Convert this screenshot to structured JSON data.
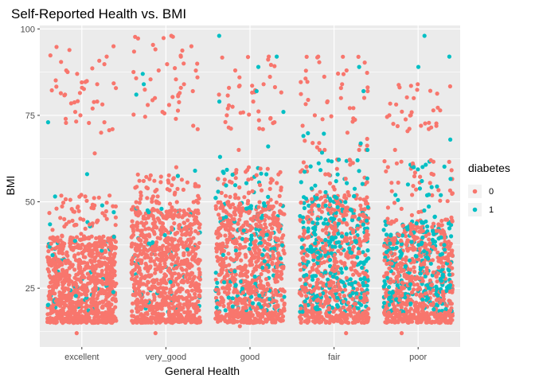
{
  "chart_data": {
    "type": "scatter",
    "title": "Self-Reported Health vs. BMI",
    "xlabel": "General Health",
    "ylabel": "BMI",
    "categories": [
      "excellent",
      "very_good",
      "good",
      "fair",
      "poor"
    ],
    "ylim": [
      8,
      101
    ],
    "yticks": [
      25,
      50,
      75,
      100
    ],
    "jitter": "horizontal jitter within each category",
    "grid": true,
    "legend": {
      "title": "diabetes",
      "placement": "right",
      "entries": [
        {
          "label": "0",
          "color": "#F8766D"
        },
        {
          "label": "1",
          "color": "#00BFC4"
        }
      ]
    },
    "series": [
      {
        "name": "0",
        "color": "#F8766D",
        "bands": [
          {
            "category": "excellent",
            "dense_range": [
              15,
              40
            ],
            "sparse_range": [
              40,
              52
            ],
            "top_range": [
              70,
              95
            ]
          },
          {
            "category": "very_good",
            "dense_range": [
              15,
              48
            ],
            "sparse_range": [
              48,
              58
            ],
            "top_range": [
              70,
              98
            ]
          },
          {
            "category": "good",
            "dense_range": [
              15,
              50
            ],
            "sparse_range": [
              50,
              60
            ],
            "top_range": [
              70,
              92
            ]
          },
          {
            "category": "fair",
            "dense_range": [
              15,
              52
            ],
            "sparse_range": [
              52,
              70
            ],
            "top_range": [
              72,
              92
            ]
          },
          {
            "category": "poor",
            "dense_range": [
              15,
              45
            ],
            "sparse_range": [
              45,
              62
            ],
            "top_range": [
              70,
              84
            ]
          }
        ],
        "points": [
          {
            "x": "excellent",
            "y": 95
          },
          {
            "x": "excellent",
            "y": 92
          },
          {
            "x": "excellent",
            "y": 88
          },
          {
            "x": "excellent",
            "y": 87
          },
          {
            "x": "excellent",
            "y": 84
          },
          {
            "x": "excellent",
            "y": 83
          },
          {
            "x": "excellent",
            "y": 81
          },
          {
            "x": "excellent",
            "y": 79
          },
          {
            "x": "excellent",
            "y": 77
          },
          {
            "x": "excellent",
            "y": 75
          },
          {
            "x": "excellent",
            "y": 74
          },
          {
            "x": "excellent",
            "y": 73
          },
          {
            "x": "excellent",
            "y": 71
          },
          {
            "x": "excellent",
            "y": 70
          },
          {
            "x": "excellent",
            "y": 64
          },
          {
            "x": "very_good",
            "y": 98
          },
          {
            "x": "very_good",
            "y": 95
          },
          {
            "x": "very_good",
            "y": 92
          },
          {
            "x": "very_good",
            "y": 90
          },
          {
            "x": "very_good",
            "y": 88
          },
          {
            "x": "very_good",
            "y": 86
          },
          {
            "x": "very_good",
            "y": 84
          },
          {
            "x": "very_good",
            "y": 82
          },
          {
            "x": "very_good",
            "y": 80
          },
          {
            "x": "very_good",
            "y": 78
          },
          {
            "x": "very_good",
            "y": 76
          },
          {
            "x": "very_good",
            "y": 74
          },
          {
            "x": "very_good",
            "y": 72
          },
          {
            "x": "very_good",
            "y": 71
          },
          {
            "x": "very_good",
            "y": 60
          },
          {
            "x": "good",
            "y": 92
          },
          {
            "x": "good",
            "y": 88
          },
          {
            "x": "good",
            "y": 86
          },
          {
            "x": "good",
            "y": 84
          },
          {
            "x": "good",
            "y": 81
          },
          {
            "x": "good",
            "y": 79
          },
          {
            "x": "good",
            "y": 77
          },
          {
            "x": "good",
            "y": 75
          },
          {
            "x": "good",
            "y": 73
          },
          {
            "x": "good",
            "y": 71
          },
          {
            "x": "good",
            "y": 65
          },
          {
            "x": "fair",
            "y": 92
          },
          {
            "x": "fair",
            "y": 88
          },
          {
            "x": "fair",
            "y": 84
          },
          {
            "x": "fair",
            "y": 80
          },
          {
            "x": "fair",
            "y": 75
          },
          {
            "x": "fair",
            "y": 72
          },
          {
            "x": "fair",
            "y": 70
          },
          {
            "x": "fair",
            "y": 67
          },
          {
            "x": "fair",
            "y": 65
          },
          {
            "x": "poor",
            "y": 84
          },
          {
            "x": "poor",
            "y": 75
          },
          {
            "x": "poor",
            "y": 72
          },
          {
            "x": "poor",
            "y": 65
          },
          {
            "x": "poor",
            "y": 62
          },
          {
            "x": "poor",
            "y": 12
          },
          {
            "x": "excellent",
            "y": 12
          },
          {
            "x": "very_good",
            "y": 12
          },
          {
            "x": "fair",
            "y": 12
          },
          {
            "x": "good",
            "y": 14
          }
        ]
      },
      {
        "name": "1",
        "color": "#00BFC4",
        "bands": [
          {
            "category": "excellent",
            "dense_range": [
              18,
              40
            ],
            "share": "low"
          },
          {
            "category": "very_good",
            "dense_range": [
              18,
              48
            ],
            "share": "low"
          },
          {
            "category": "good",
            "dense_range": [
              18,
              52
            ],
            "share": "medium"
          },
          {
            "category": "fair",
            "dense_range": [
              18,
              58
            ],
            "share": "high"
          },
          {
            "category": "poor",
            "dense_range": [
              18,
              58
            ],
            "share": "high"
          }
        ],
        "points": [
          {
            "x": "excellent",
            "y": 73
          },
          {
            "x": "excellent",
            "y": 58
          },
          {
            "x": "excellent",
            "y": 47
          },
          {
            "x": "very_good",
            "y": 87
          },
          {
            "x": "very_good",
            "y": 84
          },
          {
            "x": "very_good",
            "y": 81
          },
          {
            "x": "very_good",
            "y": 59
          },
          {
            "x": "good",
            "y": 98
          },
          {
            "x": "good",
            "y": 92
          },
          {
            "x": "good",
            "y": 89
          },
          {
            "x": "good",
            "y": 82
          },
          {
            "x": "good",
            "y": 79
          },
          {
            "x": "good",
            "y": 76
          },
          {
            "x": "good",
            "y": 66
          },
          {
            "x": "good",
            "y": 63
          },
          {
            "x": "fair",
            "y": 89
          },
          {
            "x": "fair",
            "y": 82
          },
          {
            "x": "fair",
            "y": 65
          },
          {
            "x": "fair",
            "y": 62
          },
          {
            "x": "poor",
            "y": 98
          },
          {
            "x": "poor",
            "y": 92
          },
          {
            "x": "poor",
            "y": 89
          },
          {
            "x": "poor",
            "y": 68
          },
          {
            "x": "poor",
            "y": 60
          },
          {
            "x": "poor",
            "y": 56
          },
          {
            "x": "poor",
            "y": 55
          }
        ]
      }
    ]
  }
}
